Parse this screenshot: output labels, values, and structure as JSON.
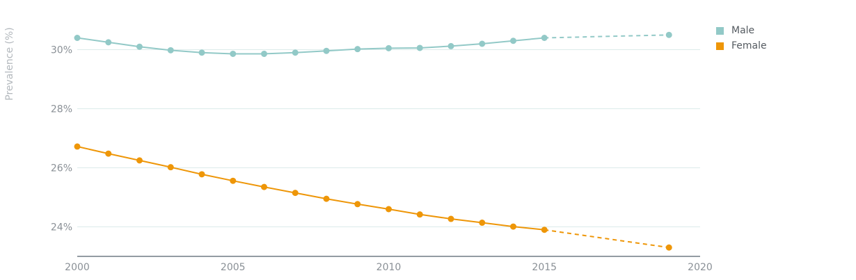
{
  "chart_data": {
    "type": "line",
    "ylabel": "Prevalence (%)",
    "xlim": [
      2000,
      2020
    ],
    "ylim": [
      23,
      31.4
    ],
    "x_ticks": [
      2000,
      2005,
      2010,
      2015,
      2020
    ],
    "y_ticks": [
      24,
      26,
      28,
      30
    ],
    "y_tick_suffix": "%",
    "grid": "horizontal",
    "legend_position": "top-right",
    "observed_x": [
      2000,
      2001,
      2002,
      2003,
      2004,
      2005,
      2006,
      2007,
      2008,
      2009,
      2010,
      2011,
      2012,
      2013,
      2014,
      2015
    ],
    "projected_x": [
      2015,
      2019
    ],
    "series": [
      {
        "name": "Male",
        "color": "#92c9c7",
        "observed": [
          30.4,
          30.25,
          30.1,
          29.98,
          29.9,
          29.86,
          29.86,
          29.9,
          29.96,
          30.02,
          30.05,
          30.06,
          30.12,
          30.2,
          30.3,
          30.4
        ],
        "projected": [
          30.4,
          30.5
        ]
      },
      {
        "name": "Female",
        "color": "#ee9608",
        "observed": [
          26.72,
          26.48,
          26.25,
          26.02,
          25.78,
          25.56,
          25.35,
          25.15,
          24.95,
          24.77,
          24.6,
          24.42,
          24.27,
          24.14,
          24.01,
          23.9
        ],
        "projected": [
          23.9,
          23.3
        ]
      }
    ]
  }
}
